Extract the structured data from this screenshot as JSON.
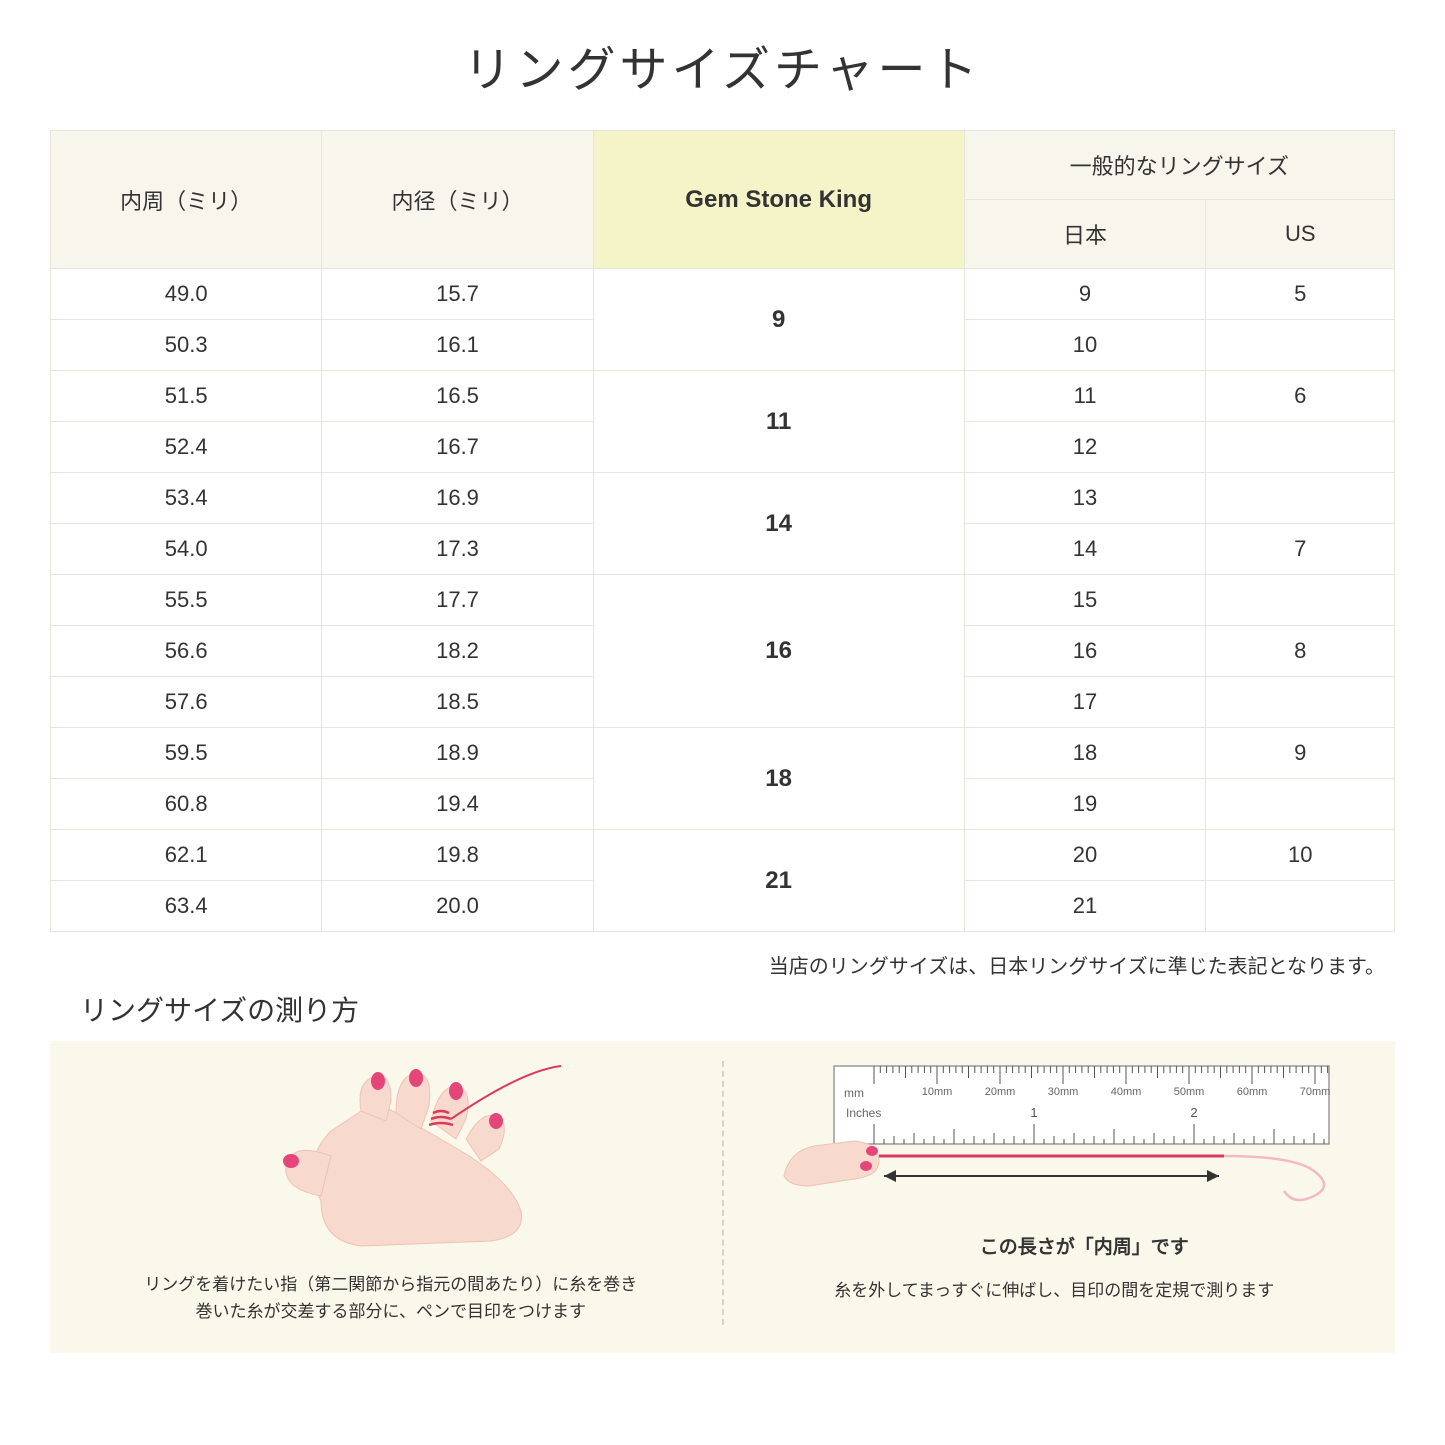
{
  "title": "リングサイズチャート",
  "table": {
    "headers": {
      "circumference": "内周（ミリ）",
      "diameter": "内径（ミリ）",
      "gsk": "Gem Stone King",
      "general": "一般的なリングサイズ",
      "jp": "日本",
      "us": "US"
    },
    "groups": [
      {
        "gsk": "9",
        "rows": [
          {
            "circ": "49.0",
            "diam": "15.7",
            "jp": "9",
            "us": "5"
          },
          {
            "circ": "50.3",
            "diam": "16.1",
            "jp": "10",
            "us": ""
          }
        ]
      },
      {
        "gsk": "11",
        "rows": [
          {
            "circ": "51.5",
            "diam": "16.5",
            "jp": "11",
            "us": "6"
          },
          {
            "circ": "52.4",
            "diam": "16.7",
            "jp": "12",
            "us": ""
          }
        ]
      },
      {
        "gsk": "14",
        "rows": [
          {
            "circ": "53.4",
            "diam": "16.9",
            "jp": "13",
            "us": ""
          },
          {
            "circ": "54.0",
            "diam": "17.3",
            "jp": "14",
            "us": "7"
          }
        ]
      },
      {
        "gsk": "16",
        "rows": [
          {
            "circ": "55.5",
            "diam": "17.7",
            "jp": "15",
            "us": ""
          },
          {
            "circ": "56.6",
            "diam": "18.2",
            "jp": "16",
            "us": "8"
          },
          {
            "circ": "57.6",
            "diam": "18.5",
            "jp": "17",
            "us": ""
          }
        ]
      },
      {
        "gsk": "18",
        "rows": [
          {
            "circ": "59.5",
            "diam": "18.9",
            "jp": "18",
            "us": "9"
          },
          {
            "circ": "60.8",
            "diam": "19.4",
            "jp": "19",
            "us": ""
          }
        ]
      },
      {
        "gsk": "21",
        "rows": [
          {
            "circ": "62.1",
            "diam": "19.8",
            "jp": "20",
            "us": "10"
          },
          {
            "circ": "63.4",
            "diam": "20.0",
            "jp": "21",
            "us": ""
          }
        ]
      }
    ]
  },
  "note": "当店のリングサイズは、日本リングサイズに準じた表記となります。",
  "howto": {
    "title": "リングサイズの測り方",
    "left_caption": "リングを着けたい指（第二関節から指元の間あたり）に糸を巻き\n巻いた糸が交差する部分に、ペンで目印をつけます",
    "right_caption": "糸を外してまっすぐに伸ばし、目印の間を定規で測ります",
    "arrow_label": "この長さが「内周」です",
    "ruler": {
      "mm_label": "mm",
      "inches_label": "Inches",
      "mm_ticks": [
        "10mm",
        "20mm",
        "30mm",
        "40mm",
        "50mm",
        "60mm",
        "70mm"
      ],
      "inch_ticks": [
        "1",
        "2"
      ]
    }
  },
  "colors": {
    "header_bg": "#f7f5ec",
    "gsk_bg": "#f5f3c8",
    "border": "#e8e5da",
    "howto_bg": "#faf8ea",
    "skin": "#f7d9ce",
    "skin_shadow": "#eec3b4",
    "nail": "#e6457a",
    "thread": "#d93b5e",
    "ruler_bg": "#ffffff",
    "ruler_border": "#999999"
  }
}
